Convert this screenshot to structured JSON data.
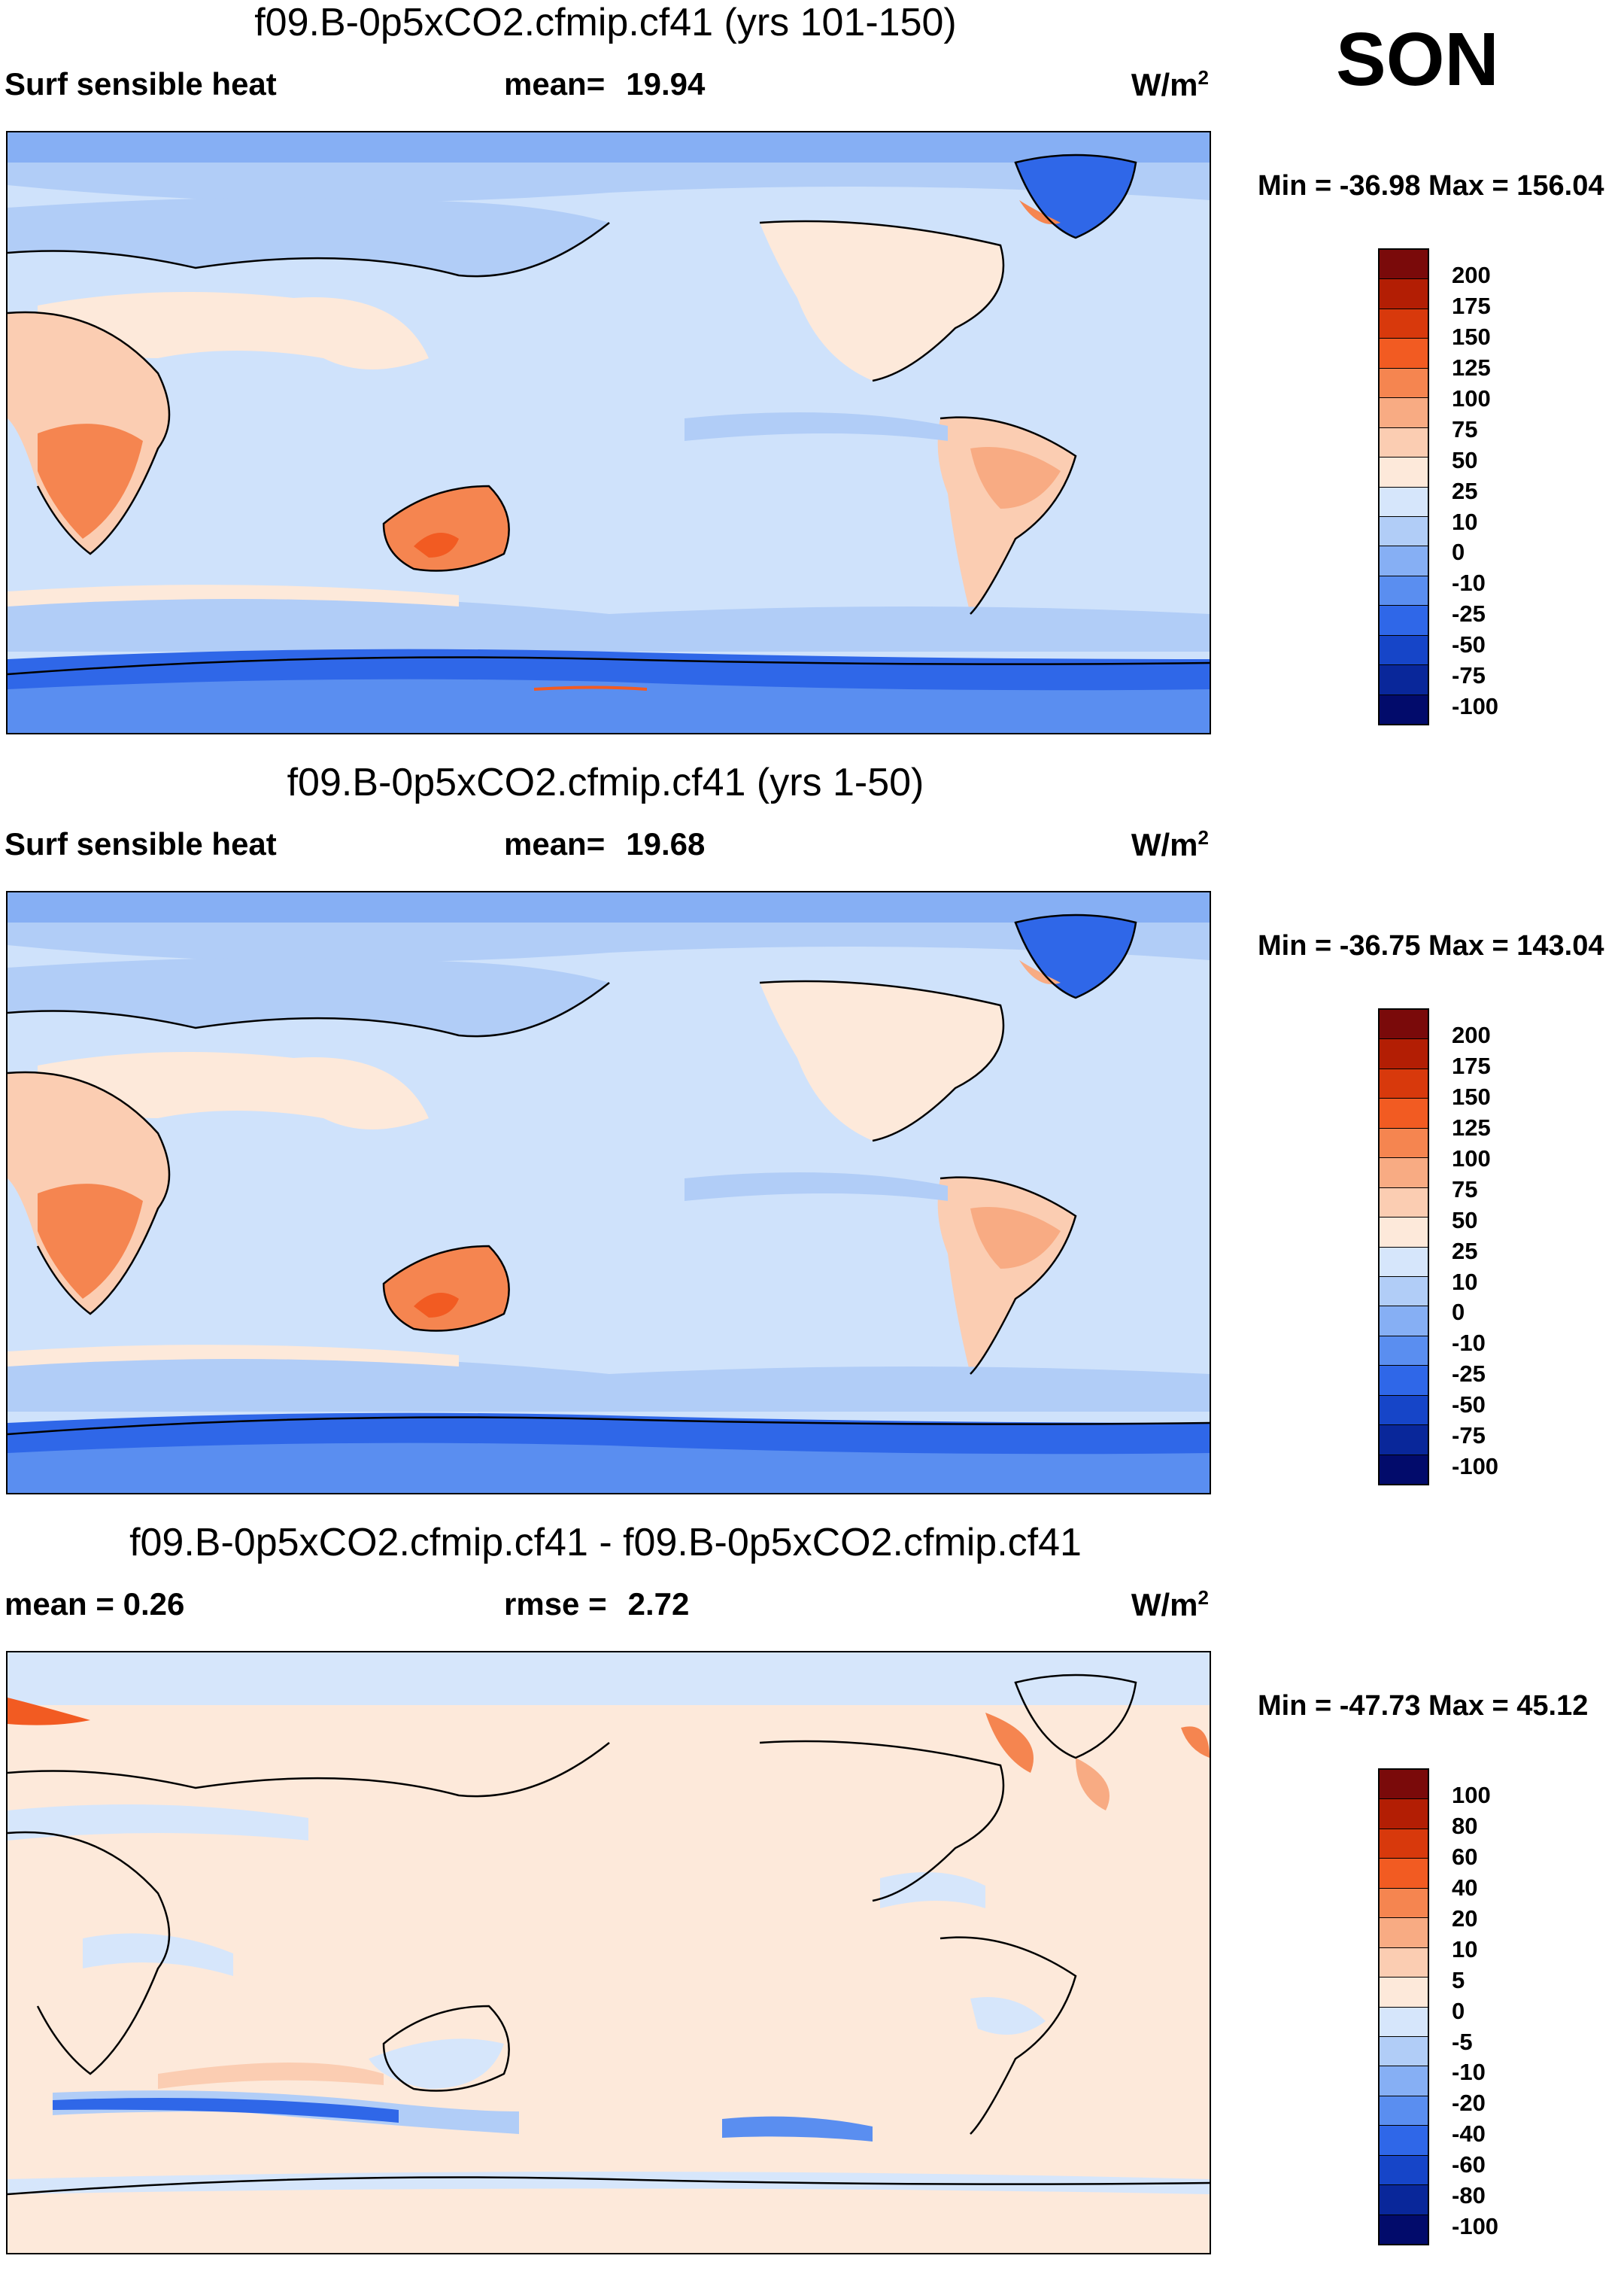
{
  "season": "SON",
  "variable": "Surf sensible heat",
  "units_main": "W/m",
  "units_exp": "2",
  "panels": {
    "p1": {
      "title": "f09.B-0p5xCO2.cfmip.cf41 (yrs 101-150)",
      "left_label": "Surf sensible heat",
      "stat_label": "mean=",
      "stat_value": "19.94",
      "minmax": "Min = -36.98 Max = 156.04"
    },
    "p2": {
      "title": "f09.B-0p5xCO2.cfmip.cf41 (yrs 1-50)",
      "left_label": "Surf sensible heat",
      "stat_label": "mean=",
      "stat_value": "19.68",
      "minmax": "Min = -36.75 Max = 143.04"
    },
    "p3": {
      "title": "f09.B-0p5xCO2.cfmip.cf41 - f09.B-0p5xCO2.cfmip.cf41",
      "left_label": "mean =   0.26",
      "stat_label": "rmse =",
      "stat_value": "2.72",
      "minmax": "Min = -47.73 Max =  45.12"
    }
  },
  "levels_abs": [
    "200",
    "175",
    "150",
    "125",
    "100",
    "75",
    "50",
    "25",
    "10",
    "0",
    "-10",
    "-25",
    "-50",
    "-75",
    "-100"
  ],
  "levels_diff": [
    "100",
    "80",
    "60",
    "40",
    "20",
    "10",
    "5",
    "0",
    "-5",
    "-10",
    "-20",
    "-40",
    "-60",
    "-80",
    "-100"
  ],
  "colors": [
    "#7a0a0a",
    "#b31e04",
    "#d8390c",
    "#f25b22",
    "#f58550",
    "#f8ab83",
    "#fbcdb2",
    "#fde9da",
    "#d6e6fb",
    "#b1cdf7",
    "#86aff4",
    "#5a8ef0",
    "#2f67e8",
    "#1645c8",
    "#09279a",
    "#020b6b"
  ]
}
